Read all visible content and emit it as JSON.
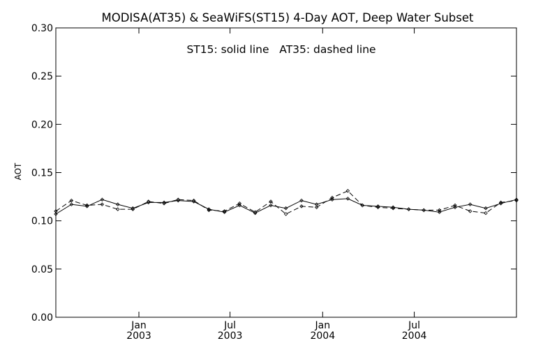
{
  "chart_data": {
    "type": "line",
    "title": "MODISA(AT35) & SeaWiFS(ST15) 4-Day AOT, Deep Water Subset",
    "annotation": "ST15: solid line   AT35: dashed line",
    "xlabel": "",
    "ylabel": "AOT",
    "xlim": [
      "2002-07-20",
      "2005-01-20"
    ],
    "ylim": [
      0.0,
      0.3
    ],
    "yticks": [
      0.0,
      0.05,
      0.1,
      0.15,
      0.2,
      0.25,
      0.3
    ],
    "ytick_labels": [
      "0.00",
      "0.05",
      "0.10",
      "0.15",
      "0.20",
      "0.25",
      "0.30"
    ],
    "xticks": [
      {
        "date": "2003-01-01",
        "month": "Jan",
        "year": "2003"
      },
      {
        "date": "2003-07-01",
        "month": "Jul",
        "year": "2003"
      },
      {
        "date": "2004-01-01",
        "month": "Jan",
        "year": "2004"
      },
      {
        "date": "2004-07-01",
        "month": "Jul",
        "year": "2004"
      }
    ],
    "grid": false,
    "x": [
      "2002-07-20",
      "2002-08-20",
      "2002-09-20",
      "2002-10-20",
      "2002-11-20",
      "2002-12-20",
      "2003-01-20",
      "2003-02-20",
      "2003-03-20",
      "2003-04-20",
      "2003-05-20",
      "2003-06-20",
      "2003-07-20",
      "2003-08-20",
      "2003-09-20",
      "2003-10-20",
      "2003-11-20",
      "2003-12-20",
      "2004-01-20",
      "2004-02-20",
      "2004-03-20",
      "2004-04-20",
      "2004-05-20",
      "2004-06-20",
      "2004-07-20",
      "2004-08-20",
      "2004-09-20",
      "2004-10-20",
      "2004-11-20",
      "2004-12-20",
      "2005-01-20"
    ],
    "series": [
      {
        "name": "ST15",
        "style": "solid",
        "values": [
          0.107,
          0.117,
          0.115,
          0.122,
          0.117,
          0.113,
          0.119,
          0.119,
          0.121,
          0.12,
          0.112,
          0.109,
          0.116,
          0.108,
          0.116,
          0.113,
          0.121,
          0.117,
          0.122,
          0.123,
          0.116,
          0.115,
          0.114,
          0.112,
          0.111,
          0.109,
          0.114,
          0.117,
          0.113,
          0.118,
          0.122
        ]
      },
      {
        "name": "AT35",
        "style": "dashed",
        "values": [
          0.11,
          0.121,
          0.116,
          0.117,
          0.112,
          0.112,
          0.12,
          0.118,
          0.122,
          0.121,
          0.111,
          0.11,
          0.118,
          0.109,
          0.12,
          0.107,
          0.115,
          0.114,
          0.124,
          0.131,
          0.116,
          0.114,
          0.113,
          0.112,
          0.111,
          0.111,
          0.116,
          0.11,
          0.108,
          0.119,
          0.121
        ]
      }
    ],
    "colors": {
      "axes": "#000000",
      "line": "#000000",
      "background": "#ffffff"
    }
  }
}
